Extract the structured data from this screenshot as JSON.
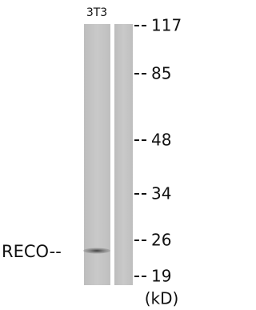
{
  "lane_label": "3T3",
  "band_label": "RECO--",
  "markers": [
    "117",
    "85",
    "48",
    "34",
    "26",
    "19"
  ],
  "unit": "(kD)"
}
